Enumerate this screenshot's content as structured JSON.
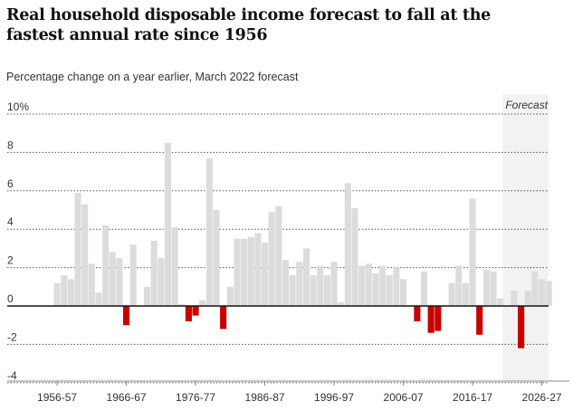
{
  "chart_data": {
    "type": "bar",
    "title": "Real household disposable income forecast to fall at the fastest annual rate since 1956",
    "subtitle": "Percentage change on a year earlier, March 2022 forecast",
    "ylim": [
      -4.5,
      10
    ],
    "yticks": [
      {
        "value": 10,
        "label": "10%"
      },
      {
        "value": 8,
        "label": "8"
      },
      {
        "value": 6,
        "label": "6"
      },
      {
        "value": 4,
        "label": "4"
      },
      {
        "value": 2,
        "label": "2"
      },
      {
        "value": 0,
        "label": "0"
      },
      {
        "value": -2,
        "label": "-2"
      },
      {
        "value": -4,
        "label": "-4"
      }
    ],
    "xticks": [
      "1956-57",
      "1966-67",
      "1976-77",
      "1986-87",
      "1996-97",
      "2006-07",
      "2016-17",
      "2026-27"
    ],
    "first_year": "1956-57",
    "forecast_label": "Forecast",
    "forecast_from": "2022-23",
    "positive_color": "#dcdcdc",
    "negative_color": "#c70000",
    "forecast_band_color": "#f2f2f2",
    "values": [
      1.2,
      1.6,
      1.4,
      5.9,
      5.3,
      2.2,
      0.7,
      4.2,
      2.8,
      2.5,
      -1.0,
      3.2,
      0.0,
      1.0,
      3.4,
      2.5,
      8.5,
      4.1,
      0.1,
      -0.8,
      -0.5,
      0.3,
      7.7,
      5.0,
      -1.2,
      1.0,
      3.5,
      3.5,
      3.6,
      3.8,
      3.3,
      4.9,
      5.2,
      2.4,
      1.6,
      2.3,
      3.0,
      1.6,
      2.1,
      1.6,
      2.3,
      0.2,
      6.4,
      5.1,
      2.1,
      2.2,
      1.7,
      2.1,
      1.6,
      2.0,
      1.4,
      0.0,
      -0.8,
      1.8,
      -1.4,
      -1.3,
      0.0,
      1.2,
      2.1,
      1.2,
      5.6,
      -1.5,
      1.9,
      1.8,
      0.4,
      0.0,
      0.8,
      -2.2,
      0.8,
      1.8,
      1.4,
      1.3
    ]
  }
}
